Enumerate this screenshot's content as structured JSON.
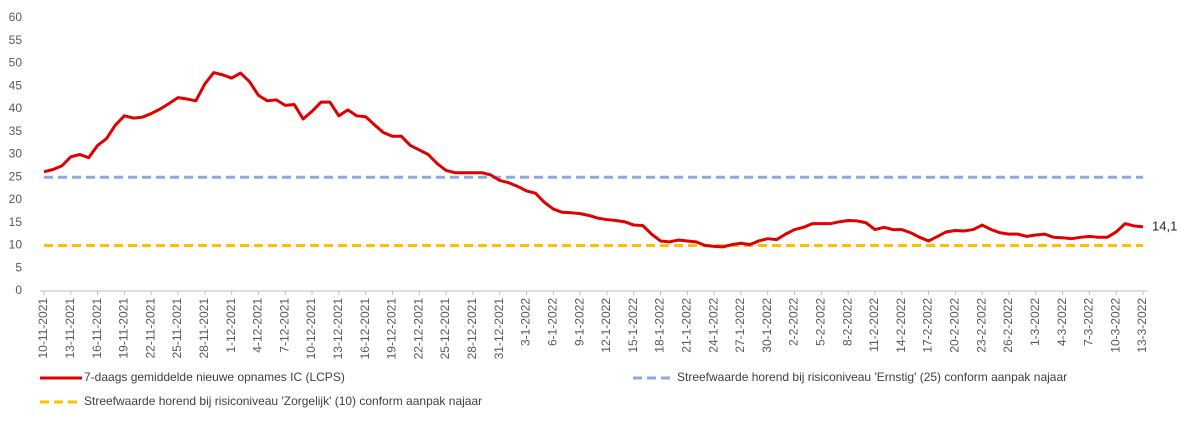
{
  "chart_data": {
    "type": "line",
    "categories": [
      "10-11-2021",
      null,
      null,
      "13-11-2021",
      null,
      null,
      "16-11-2021",
      null,
      null,
      "19-11-2021",
      null,
      null,
      "22-11-2021",
      null,
      null,
      "25-11-2021",
      null,
      null,
      "28-11-2021",
      null,
      null,
      "1-12-2021",
      null,
      null,
      "4-12-2021",
      null,
      null,
      "7-12-2021",
      null,
      null,
      "10-12-2021",
      null,
      null,
      "13-12-2021",
      null,
      null,
      "16-12-2021",
      null,
      null,
      "19-12-2021",
      null,
      null,
      "22-12-2021",
      null,
      null,
      "25-12-2021",
      null,
      null,
      "28-12-2021",
      null,
      null,
      "31-12-2021",
      null,
      null,
      "3-1-2022",
      null,
      null,
      "6-1-2022",
      null,
      null,
      "9-1-2022",
      null,
      null,
      "12-1-2022",
      null,
      null,
      "15-1-2022",
      null,
      null,
      "18-1-2022",
      null,
      null,
      "21-1-2022",
      null,
      null,
      "24-1-2022",
      null,
      null,
      "27-1-2022",
      null,
      null,
      "30-1-2022",
      null,
      null,
      "2-2-2022",
      null,
      null,
      "5-2-2022",
      null,
      null,
      "8-2-2022",
      null,
      null,
      "11-2-2022",
      null,
      null,
      "14-2-2022",
      null,
      null,
      "17-2-2022",
      null,
      null,
      "20-2-2022",
      null,
      null,
      "23-2-2022",
      null,
      null,
      "26-2-2022",
      null,
      null,
      "1-3-2022",
      null,
      null,
      "4-3-2022",
      null,
      null,
      "7-3-2022",
      null,
      null,
      "10-3-2022",
      null,
      null,
      "13-3-2022"
    ],
    "series": [
      {
        "name": "7-daags gemiddelde nieuwe opnames IC (LCPS)",
        "color": "#e00000",
        "values": [
          26.2,
          26.7,
          27.5,
          29.5,
          30.0,
          29.3,
          32.0,
          33.5,
          36.5,
          38.5,
          38.0,
          38.2,
          39.0,
          40.0,
          41.2,
          42.5,
          42.2,
          41.8,
          45.5,
          48.0,
          47.5,
          46.8,
          47.9,
          46.0,
          43.0,
          41.8,
          42.0,
          40.8,
          41.0,
          37.8,
          39.5,
          41.5,
          41.5,
          38.5,
          39.8,
          38.5,
          38.3,
          36.5,
          34.8,
          34.0,
          34.0,
          32.0,
          31.0,
          30.0,
          28.0,
          26.5,
          26.0,
          26.0,
          26.0,
          26.0,
          25.5,
          24.3,
          23.8,
          23.0,
          22.0,
          21.5,
          19.5,
          18.0,
          17.3,
          17.2,
          17.0,
          16.6,
          16.0,
          15.7,
          15.5,
          15.2,
          14.5,
          14.4,
          12.5,
          11.0,
          10.8,
          11.2,
          11.0,
          10.8,
          10.0,
          9.8,
          9.7,
          10.2,
          10.5,
          10.2,
          11.0,
          11.5,
          11.3,
          12.5,
          13.5,
          14.0,
          14.8,
          14.8,
          14.8,
          15.2,
          15.5,
          15.4,
          15.0,
          13.5,
          14.0,
          13.5,
          13.5,
          12.8,
          11.8,
          11.0,
          12.0,
          13.0,
          13.3,
          13.2,
          13.5,
          14.5,
          13.5,
          12.8,
          12.5,
          12.5,
          12.0,
          12.3,
          12.5,
          11.8,
          11.7,
          11.5,
          11.8,
          12.0,
          11.8,
          11.8,
          13.0,
          14.8,
          14.3,
          14.1
        ],
        "value_labels": [
          null,
          null,
          null,
          null,
          null,
          null,
          null,
          null,
          null,
          null,
          null,
          null,
          null,
          null,
          null,
          null,
          null,
          null,
          null,
          null,
          null,
          null,
          null,
          null,
          null,
          null,
          null,
          null,
          null,
          null,
          null,
          null,
          null,
          null,
          null,
          null,
          null,
          null,
          null,
          null,
          null,
          null,
          null,
          null,
          null,
          null,
          null,
          null,
          null,
          null,
          null,
          null,
          null,
          null,
          null,
          null,
          null,
          null,
          null,
          null,
          null,
          null,
          null,
          null,
          null,
          null,
          null,
          null,
          null,
          null,
          null,
          null,
          null,
          null,
          null,
          null,
          null,
          null,
          null,
          null,
          null,
          null,
          null,
          null,
          null,
          null,
          null,
          null,
          null,
          null,
          null,
          null,
          null,
          null,
          null,
          null,
          null,
          null,
          null,
          null,
          null,
          null,
          null,
          null,
          null,
          null,
          null,
          null,
          null,
          null,
          null,
          null,
          null,
          null,
          null,
          null,
          null,
          null,
          null,
          null,
          null,
          null,
          null,
          "14,1"
        ]
      }
    ],
    "reference_lines": [
      {
        "name": "Streefwaarde horend bij risiconiveau 'Ernstig' (25) conform aanpak najaar",
        "value": 25,
        "color": "#8eaadb",
        "style": "dashed"
      },
      {
        "name": "Streefwaarde horend bij risiconiveau 'Zorgelijk' (10) conform aanpak najaar",
        "value": 10,
        "color": "#ffc000",
        "style": "dashed"
      }
    ],
    "ylim": [
      0,
      60
    ],
    "yticks": [
      0,
      5,
      10,
      15,
      20,
      25,
      30,
      35,
      40,
      45,
      50,
      55,
      60
    ],
    "grid": false
  }
}
